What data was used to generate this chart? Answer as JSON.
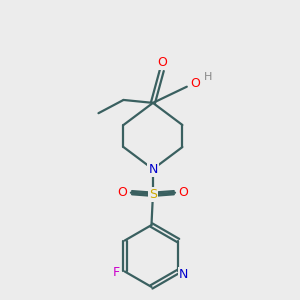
{
  "background_color": "#ececec",
  "bond_color": "#3a6060",
  "atom_colors": {
    "O": "#ff0000",
    "N": "#0000cc",
    "S": "#ccaa00",
    "F": "#cc00cc",
    "H": "#888888"
  },
  "figsize": [
    3.0,
    3.0
  ],
  "dpi": 100,
  "lw": 1.6
}
